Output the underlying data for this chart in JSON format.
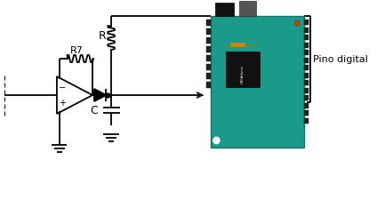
{
  "bg_color": "#ffffff",
  "line_color": "#000000",
  "fig_width": 4.24,
  "fig_height": 2.25,
  "dpi": 100,
  "label_R7": "R7",
  "label_R": "R",
  "label_C": "C",
  "label_pino": "Pino digital"
}
